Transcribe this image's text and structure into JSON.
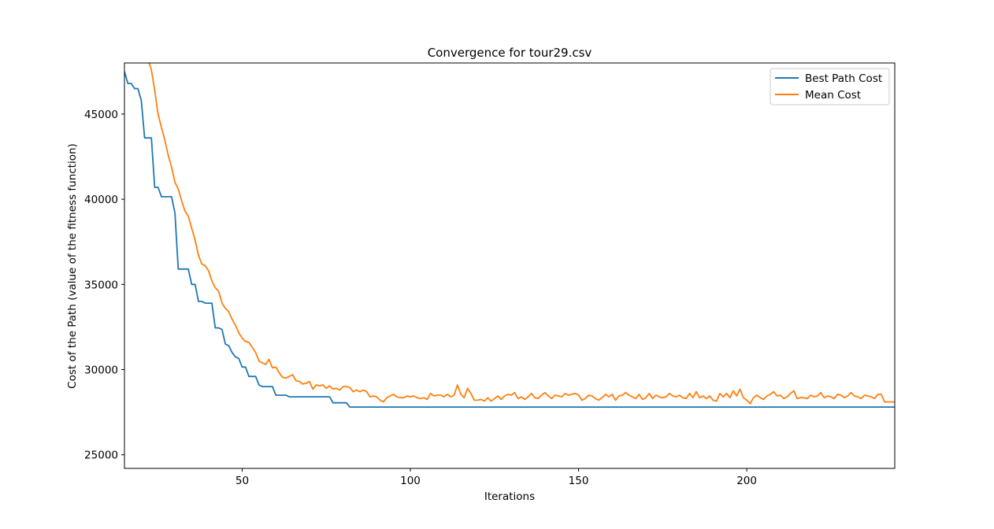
{
  "chart_data": {
    "type": "line",
    "title": "Convergence for tour29.csv",
    "xlabel": "Iterations",
    "ylabel": "Cost of the Path (value of the fitness function)",
    "xlim": [
      15,
      244
    ],
    "ylim": [
      24200,
      48000
    ],
    "xticks": [
      50,
      100,
      150,
      200
    ],
    "yticks": [
      25000,
      30000,
      35000,
      40000,
      45000
    ],
    "grid": false,
    "legend_position": "upper right",
    "series": [
      {
        "name": "Best Path Cost",
        "color": "#1f77b4",
        "points": [
          [
            15,
            47500
          ],
          [
            16,
            46800
          ],
          [
            17,
            46800
          ],
          [
            18,
            46500
          ],
          [
            19,
            46500
          ],
          [
            20,
            45800
          ],
          [
            21,
            43600
          ],
          [
            22,
            43600
          ],
          [
            23,
            43600
          ],
          [
            24,
            40700
          ],
          [
            25,
            40700
          ],
          [
            26,
            40150
          ],
          [
            27,
            40150
          ],
          [
            28,
            40150
          ],
          [
            29,
            40150
          ],
          [
            30,
            39200
          ],
          [
            31,
            35900
          ],
          [
            32,
            35900
          ],
          [
            33,
            35900
          ],
          [
            34,
            35900
          ],
          [
            35,
            35000
          ],
          [
            36,
            35000
          ],
          [
            37,
            34000
          ],
          [
            38,
            34000
          ],
          [
            39,
            33900
          ],
          [
            40,
            33900
          ],
          [
            41,
            33900
          ],
          [
            42,
            32450
          ],
          [
            43,
            32450
          ],
          [
            44,
            32350
          ],
          [
            45,
            31500
          ],
          [
            46,
            31400
          ],
          [
            47,
            31000
          ],
          [
            48,
            30750
          ],
          [
            49,
            30650
          ],
          [
            50,
            30150
          ],
          [
            51,
            30150
          ],
          [
            52,
            29600
          ],
          [
            53,
            29600
          ],
          [
            54,
            29600
          ],
          [
            55,
            29100
          ],
          [
            56,
            29000
          ],
          [
            57,
            29000
          ],
          [
            58,
            29000
          ],
          [
            59,
            29000
          ],
          [
            60,
            28500
          ],
          [
            61,
            28500
          ],
          [
            62,
            28500
          ],
          [
            63,
            28500
          ],
          [
            64,
            28400
          ],
          [
            65,
            28400
          ],
          [
            70,
            28400
          ],
          [
            76,
            28400
          ],
          [
            77,
            28050
          ],
          [
            78,
            28050
          ],
          [
            81,
            28050
          ],
          [
            82,
            27800
          ],
          [
            85,
            27800
          ],
          [
            120,
            27800
          ],
          [
            160,
            27800
          ],
          [
            200,
            27800
          ],
          [
            244,
            27800
          ]
        ]
      },
      {
        "name": "Mean Cost",
        "color": "#ff7f0e",
        "points": [
          [
            22,
            48200
          ],
          [
            23,
            47600
          ],
          [
            24,
            46400
          ],
          [
            25,
            45000
          ],
          [
            26,
            44200
          ],
          [
            27,
            43500
          ],
          [
            28,
            42600
          ],
          [
            29,
            41900
          ],
          [
            30,
            41000
          ],
          [
            31,
            40600
          ],
          [
            32,
            39900
          ],
          [
            33,
            39300
          ],
          [
            34,
            39000
          ],
          [
            35,
            38300
          ],
          [
            36,
            37600
          ],
          [
            37,
            36700
          ],
          [
            38,
            36200
          ],
          [
            39,
            36100
          ],
          [
            40,
            35800
          ],
          [
            41,
            35200
          ],
          [
            42,
            34800
          ],
          [
            43,
            34600
          ],
          [
            44,
            33900
          ],
          [
            45,
            33600
          ],
          [
            46,
            33400
          ],
          [
            47,
            32950
          ],
          [
            48,
            32600
          ],
          [
            49,
            32150
          ],
          [
            50,
            31850
          ],
          [
            51,
            31650
          ],
          [
            52,
            31600
          ],
          [
            53,
            31300
          ],
          [
            54,
            31000
          ],
          [
            55,
            30500
          ],
          [
            56,
            30400
          ],
          [
            57,
            30300
          ],
          [
            58,
            30600
          ],
          [
            59,
            30100
          ],
          [
            60,
            30150
          ],
          [
            61,
            29800
          ],
          [
            62,
            29550
          ],
          [
            63,
            29500
          ],
          [
            64,
            29600
          ],
          [
            65,
            29700
          ],
          [
            66,
            29350
          ],
          [
            67,
            29300
          ],
          [
            68,
            29150
          ],
          [
            69,
            29200
          ],
          [
            70,
            29300
          ],
          [
            71,
            28850
          ],
          [
            72,
            29100
          ],
          [
            73,
            29050
          ],
          [
            74,
            29100
          ],
          [
            75,
            28900
          ],
          [
            76,
            29050
          ],
          [
            77,
            28850
          ],
          [
            78,
            28900
          ],
          [
            79,
            28800
          ],
          [
            80,
            29000
          ],
          [
            81,
            29000
          ],
          [
            82,
            28950
          ],
          [
            83,
            28700
          ],
          [
            84,
            28800
          ],
          [
            85,
            28700
          ],
          [
            86,
            28800
          ],
          [
            87,
            28700
          ],
          [
            88,
            28400
          ],
          [
            89,
            28450
          ],
          [
            90,
            28400
          ],
          [
            91,
            28200
          ],
          [
            92,
            28100
          ],
          [
            93,
            28350
          ],
          [
            94,
            28450
          ],
          [
            95,
            28550
          ],
          [
            96,
            28400
          ],
          [
            97,
            28350
          ],
          [
            98,
            28350
          ],
          [
            99,
            28450
          ],
          [
            100,
            28400
          ],
          [
            101,
            28450
          ],
          [
            102,
            28350
          ],
          [
            103,
            28300
          ],
          [
            104,
            28350
          ],
          [
            105,
            28250
          ],
          [
            106,
            28600
          ],
          [
            107,
            28450
          ],
          [
            108,
            28500
          ],
          [
            109,
            28500
          ],
          [
            110,
            28400
          ],
          [
            111,
            28550
          ],
          [
            112,
            28400
          ],
          [
            113,
            28500
          ],
          [
            114,
            29100
          ],
          [
            115,
            28550
          ],
          [
            116,
            28350
          ],
          [
            117,
            28900
          ],
          [
            118,
            28600
          ],
          [
            119,
            28200
          ],
          [
            120,
            28200
          ],
          [
            121,
            28250
          ],
          [
            122,
            28150
          ],
          [
            123,
            28350
          ],
          [
            124,
            28150
          ],
          [
            125,
            28300
          ],
          [
            126,
            28450
          ],
          [
            127,
            28250
          ],
          [
            128,
            28450
          ],
          [
            129,
            28550
          ],
          [
            130,
            28500
          ],
          [
            131,
            28650
          ],
          [
            132,
            28300
          ],
          [
            133,
            28400
          ],
          [
            134,
            28250
          ],
          [
            135,
            28400
          ],
          [
            136,
            28600
          ],
          [
            137,
            28350
          ],
          [
            138,
            28300
          ],
          [
            139,
            28500
          ],
          [
            140,
            28650
          ],
          [
            141,
            28450
          ],
          [
            142,
            28300
          ],
          [
            143,
            28500
          ],
          [
            144,
            28450
          ],
          [
            145,
            28400
          ],
          [
            146,
            28600
          ],
          [
            147,
            28500
          ],
          [
            148,
            28550
          ],
          [
            149,
            28600
          ],
          [
            150,
            28500
          ],
          [
            151,
            28200
          ],
          [
            152,
            28300
          ],
          [
            153,
            28500
          ],
          [
            154,
            28450
          ],
          [
            155,
            28300
          ],
          [
            156,
            28200
          ],
          [
            157,
            28350
          ],
          [
            158,
            28550
          ],
          [
            159,
            28400
          ],
          [
            160,
            28550
          ],
          [
            161,
            28200
          ],
          [
            162,
            28450
          ],
          [
            163,
            28500
          ],
          [
            164,
            28650
          ],
          [
            165,
            28500
          ],
          [
            166,
            28400
          ],
          [
            167,
            28300
          ],
          [
            168,
            28550
          ],
          [
            169,
            28250
          ],
          [
            170,
            28350
          ],
          [
            171,
            28600
          ],
          [
            172,
            28300
          ],
          [
            173,
            28500
          ],
          [
            174,
            28400
          ],
          [
            175,
            28350
          ],
          [
            176,
            28400
          ],
          [
            177,
            28600
          ],
          [
            178,
            28450
          ],
          [
            179,
            28400
          ],
          [
            180,
            28500
          ],
          [
            181,
            28350
          ],
          [
            182,
            28300
          ],
          [
            183,
            28600
          ],
          [
            184,
            28350
          ],
          [
            185,
            28700
          ],
          [
            186,
            28350
          ],
          [
            187,
            28450
          ],
          [
            188,
            28300
          ],
          [
            189,
            28450
          ],
          [
            190,
            28200
          ],
          [
            191,
            28150
          ],
          [
            192,
            28600
          ],
          [
            193,
            28400
          ],
          [
            194,
            28600
          ],
          [
            195,
            28350
          ],
          [
            196,
            28750
          ],
          [
            197,
            28450
          ],
          [
            198,
            28850
          ],
          [
            199,
            28350
          ],
          [
            200,
            28200
          ],
          [
            201,
            28000
          ],
          [
            202,
            28350
          ],
          [
            203,
            28500
          ],
          [
            204,
            28350
          ],
          [
            205,
            28250
          ],
          [
            206,
            28450
          ],
          [
            207,
            28550
          ],
          [
            208,
            28700
          ],
          [
            209,
            28450
          ],
          [
            210,
            28500
          ],
          [
            211,
            28300
          ],
          [
            212,
            28400
          ],
          [
            213,
            28600
          ],
          [
            214,
            28750
          ],
          [
            215,
            28300
          ],
          [
            216,
            28350
          ],
          [
            217,
            28350
          ],
          [
            218,
            28300
          ],
          [
            219,
            28500
          ],
          [
            220,
            28400
          ],
          [
            221,
            28450
          ],
          [
            222,
            28650
          ],
          [
            223,
            28350
          ],
          [
            224,
            28450
          ],
          [
            225,
            28400
          ],
          [
            226,
            28300
          ],
          [
            227,
            28550
          ],
          [
            228,
            28500
          ],
          [
            229,
            28350
          ],
          [
            230,
            28450
          ],
          [
            231,
            28650
          ],
          [
            232,
            28450
          ],
          [
            233,
            28400
          ],
          [
            234,
            28300
          ],
          [
            235,
            28500
          ],
          [
            236,
            28450
          ],
          [
            237,
            28400
          ],
          [
            238,
            28300
          ],
          [
            239,
            28550
          ],
          [
            240,
            28550
          ],
          [
            241,
            28100
          ],
          [
            242,
            28100
          ],
          [
            244,
            28100
          ]
        ]
      }
    ]
  }
}
